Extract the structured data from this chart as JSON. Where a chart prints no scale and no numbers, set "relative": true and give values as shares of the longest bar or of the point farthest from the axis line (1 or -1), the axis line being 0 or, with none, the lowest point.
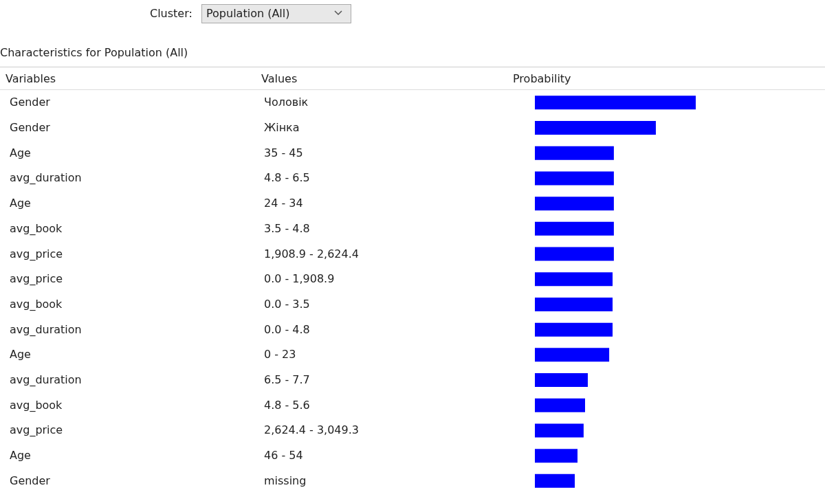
{
  "chart_data": {
    "type": "bar",
    "orientation": "horizontal",
    "relative": true,
    "title": "Characteristics for Population (All)",
    "xlabel": "Probability",
    "color": "#0000ff",
    "categories": [
      "Чоловік",
      "Жінка",
      "35 - 45",
      "4.8 - 6.5",
      "24 - 34",
      "3.5 - 4.8",
      "1,908.9 - 2,624.4",
      "0.0 - 1,908.9",
      "0.0 - 3.5",
      "0.0 - 4.8",
      "0 - 23",
      "6.5 - 7.7",
      "4.8 - 5.6",
      "2,624.4 - 3,049.3",
      "46 - 54",
      "missing"
    ],
    "values": [
      1,
      0.752,
      0.491,
      0.491,
      0.491,
      0.491,
      0.491,
      0.483,
      0.483,
      0.483,
      0.462,
      0.329,
      0.312,
      0.303,
      0.265,
      0.248
    ],
    "annotations": [
      "Cluster:",
      "Population (All)",
      "Variables",
      "Values",
      "Gender",
      "Gender",
      "Age",
      "avg_duration",
      "Age",
      "avg_book",
      "avg_price",
      "avg_price",
      "avg_book",
      "avg_duration",
      "Age",
      "avg_duration",
      "avg_book",
      "avg_price",
      "Age",
      "Gender"
    ]
  }
}
